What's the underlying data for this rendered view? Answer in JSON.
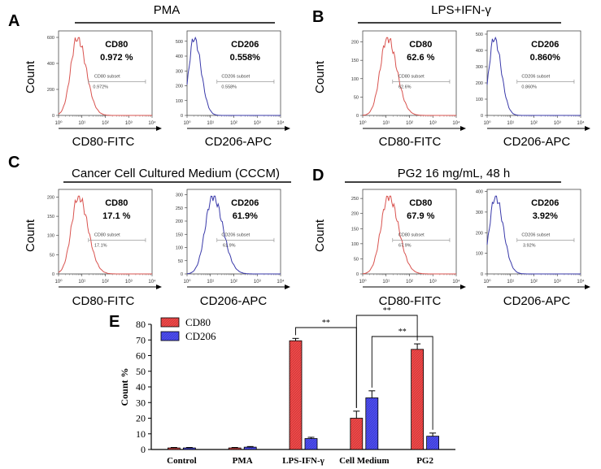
{
  "panels": [
    {
      "letter": "A",
      "condition": "PMA",
      "count_label": "Count",
      "histograms": [
        {
          "marker": "CD80",
          "percent": "0.972 %",
          "subset_label": "CD80 subset",
          "subset_value": "0.972%",
          "channel": "CD80-FITC",
          "color": "#d9534f",
          "y_ticks": [
            "0",
            "200",
            "400",
            "600"
          ],
          "y_max": 650,
          "peak_x": 0.8,
          "peak_w": 0.28
        },
        {
          "marker": "CD206",
          "percent": "0.558%",
          "subset_label": "CD206 subset",
          "subset_value": "0.558%",
          "channel": "CD206-APC",
          "color": "#3a3aaa",
          "y_ticks": [
            "0",
            "100",
            "200",
            "300",
            "400",
            "500"
          ],
          "y_max": 570,
          "peak_x": 0.3,
          "peak_w": 0.22
        }
      ]
    },
    {
      "letter": "B",
      "condition": "LPS+IFN-γ",
      "count_label": "Count",
      "histograms": [
        {
          "marker": "CD80",
          "percent": "62.6 %",
          "subset_label": "CD80 subset",
          "subset_value": "62.6%",
          "channel": "CD80-FITC",
          "color": "#d9534f",
          "y_ticks": [
            "0",
            "50",
            "100",
            "150",
            "200"
          ],
          "y_max": 230,
          "peak_x": 1.05,
          "peak_w": 0.3
        },
        {
          "marker": "CD206",
          "percent": "0.860%",
          "subset_label": "CD206 subset",
          "subset_value": "0.860%",
          "channel": "CD206-APC",
          "color": "#3a3aaa",
          "y_ticks": [
            "0",
            "100",
            "200",
            "300",
            "400",
            "500"
          ],
          "y_max": 520,
          "peak_x": 0.3,
          "peak_w": 0.22
        }
      ]
    },
    {
      "letter": "C",
      "condition": "Cancer Cell Cultured Medium (CCCM)",
      "count_label": "Count",
      "histograms": [
        {
          "marker": "CD80",
          "percent": "17.1 %",
          "subset_label": "CD80 subset",
          "subset_value": "17.1%",
          "channel": "CD80-FITC",
          "color": "#d9534f",
          "y_ticks": [
            "0",
            "50",
            "100",
            "150",
            "200"
          ],
          "y_max": 220,
          "peak_x": 0.85,
          "peak_w": 0.3
        },
        {
          "marker": "CD206",
          "percent": "61.9%",
          "subset_label": "CD206 subset",
          "subset_value": "61.9%",
          "channel": "CD206-APC",
          "color": "#3a3aaa",
          "y_ticks": [
            "0",
            "50",
            "100",
            "150",
            "200",
            "250",
            "300"
          ],
          "y_max": 320,
          "peak_x": 1.1,
          "peak_w": 0.32
        }
      ]
    },
    {
      "letter": "D",
      "condition": "PG2 16 mg/mL, 48 h",
      "count_label": "Count",
      "histograms": [
        {
          "marker": "CD80",
          "percent": "67.9 %",
          "subset_label": "CD80 subset",
          "subset_value": "67.9%",
          "channel": "CD80-FITC",
          "color": "#d9534f",
          "y_ticks": [
            "0",
            "50",
            "100",
            "150",
            "200",
            "250"
          ],
          "y_max": 280,
          "peak_x": 1.1,
          "peak_w": 0.32
        },
        {
          "marker": "CD206",
          "percent": "3.92%",
          "subset_label": "CD206 subset",
          "subset_value": "3.92%",
          "channel": "CD206-APC",
          "color": "#3a3aaa",
          "y_ticks": [
            "0",
            "100",
            "200",
            "300",
            "400"
          ],
          "y_max": 410,
          "peak_x": 0.35,
          "peak_w": 0.25
        }
      ]
    }
  ],
  "x_tick_labels": [
    "10⁰",
    "10¹",
    "10²",
    "10³",
    "10⁴"
  ],
  "chart_data": {
    "type": "bar",
    "panel_letter": "E",
    "categories": [
      "Control",
      "PMA",
      "LPS-IFN-γ",
      "Cell Medium",
      "PG2"
    ],
    "series": [
      {
        "name": "CD80",
        "values": [
          1,
          1,
          69.5,
          20,
          64
        ],
        "errors": [
          0.3,
          0.3,
          1.5,
          4.5,
          3.5
        ],
        "color": "#f04646"
      },
      {
        "name": "CD206",
        "values": [
          1,
          1.5,
          7,
          33,
          8.5
        ],
        "errors": [
          0.3,
          0.4,
          0.8,
          4.5,
          2
        ],
        "color": "#4a4af0"
      }
    ],
    "ylabel": "Count %",
    "ylim": [
      0,
      80
    ],
    "yticks": [
      0,
      10,
      20,
      30,
      40,
      50,
      60,
      70,
      80
    ],
    "legend_position": "top-left",
    "significance": [
      {
        "label": "**"
      },
      {
        "label": "**"
      },
      {
        "label": "**"
      }
    ]
  }
}
